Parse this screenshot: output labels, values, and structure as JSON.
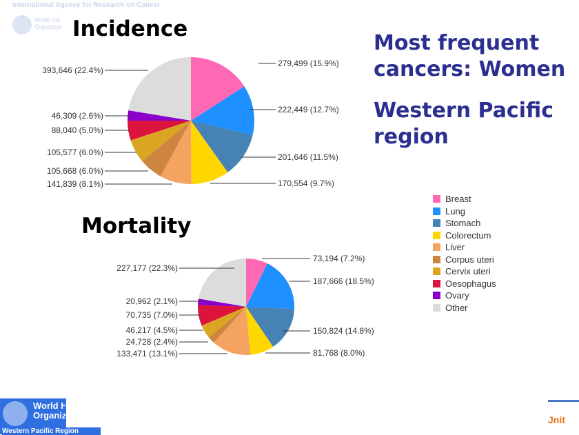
{
  "header": {
    "agency": "International Agency for Research on Cancer",
    "who_faded": "World He\nOrganizat"
  },
  "incidence": {
    "title": "Incidence",
    "values": [
      15.9,
      12.7,
      11.5,
      9.7,
      8.1,
      6.0,
      6.0,
      5.0,
      2.6,
      22.4
    ],
    "labels": [
      "279,499 (15.9%)",
      "222,449 (12.7%)",
      "201,646 (11.5%)",
      "170,554 (9.7%)",
      "141,839 (8.1%)",
      "105,668 (6.0%)",
      "105,577 (6.0%)",
      "88,040 (5.0%)",
      "46,309 (2.6%)",
      "393,646 (22.4%)"
    ]
  },
  "mortality": {
    "title": "Mortality",
    "values": [
      7.2,
      18.5,
      14.8,
      8.0,
      13.1,
      2.4,
      4.5,
      7.0,
      2.1,
      22.3
    ],
    "labels": [
      "73,194 (7.2%)",
      "187,666 (18.5%)",
      "150,824 (14.8%)",
      "81,768 (8.0%)",
      "133,471 (13.1%)",
      "24,728 (2.4%)",
      "46,217 (4.5%)",
      "70,735 (7.0%)",
      "20,962 (2.1%)",
      "227,177 (22.3%)"
    ]
  },
  "title": {
    "line1": "Most frequent",
    "line2": "cancers: Women",
    "line3": "Western Pacific",
    "line4": "region"
  },
  "legend": [
    {
      "label": "Breast",
      "color": "#ff69b4"
    },
    {
      "label": "Lung",
      "color": "#1e90ff"
    },
    {
      "label": "Stomach",
      "color": "#4682b4"
    },
    {
      "label": "Colorectum",
      "color": "#ffd700"
    },
    {
      "label": "Liver",
      "color": "#f4a460"
    },
    {
      "label": "Corpus uteri",
      "color": "#cd853f"
    },
    {
      "label": "Cervix uteri",
      "color": "#daa520"
    },
    {
      "label": "Oesophagus",
      "color": "#dc143c"
    },
    {
      "label": "Ovary",
      "color": "#8b00c8"
    },
    {
      "label": "Other",
      "color": "#dcdcdc"
    }
  ],
  "footer": {
    "who": "World H\nOrganiz",
    "region": "Western Pacific Region",
    "unit": "Jnit"
  }
}
